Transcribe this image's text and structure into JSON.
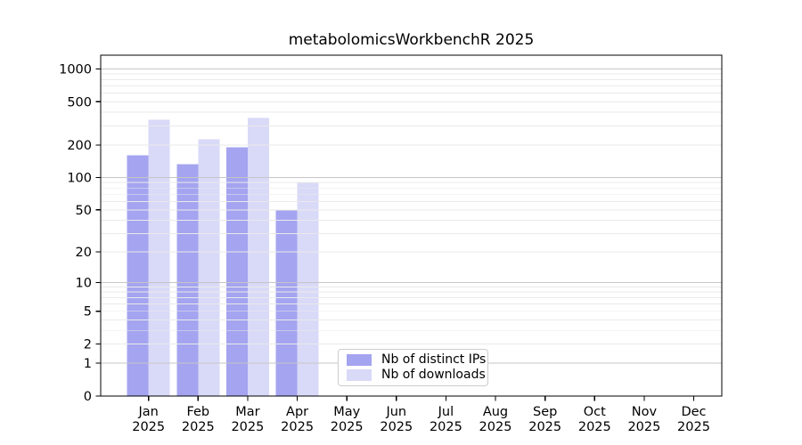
{
  "chart_data": {
    "type": "bar",
    "title": "metabolomicsWorkbenchR 2025",
    "scale": "log1p",
    "grid": "both",
    "categories": [
      "Jan",
      "Feb",
      "Mar",
      "Apr",
      "May",
      "Jun",
      "Jul",
      "Aug",
      "Sep",
      "Oct",
      "Nov",
      "Dec"
    ],
    "category_year": "2025",
    "series": [
      {
        "name": "Nb of distinct IPs",
        "color": "#a4a4f0",
        "values": [
          160,
          133,
          190,
          50,
          null,
          null,
          null,
          null,
          null,
          null,
          null,
          null
        ]
      },
      {
        "name": "Nb of downloads",
        "color": "#d9d9f8",
        "values": [
          340,
          225,
          356,
          90,
          null,
          null,
          null,
          null,
          null,
          null,
          null,
          null
        ]
      }
    ],
    "y_ticks": [
      0,
      1,
      2,
      5,
      10,
      20,
      50,
      100,
      200,
      500,
      1000
    ],
    "ylim": [
      0,
      1340
    ],
    "legend_position": "lower center"
  },
  "colors": {
    "background": "#ffffff",
    "axis": "#000000",
    "text": "#000000",
    "major_grid": "#c6c6c6",
    "minor_grid": "#eaeaea",
    "legend_border": "#cccccc"
  }
}
